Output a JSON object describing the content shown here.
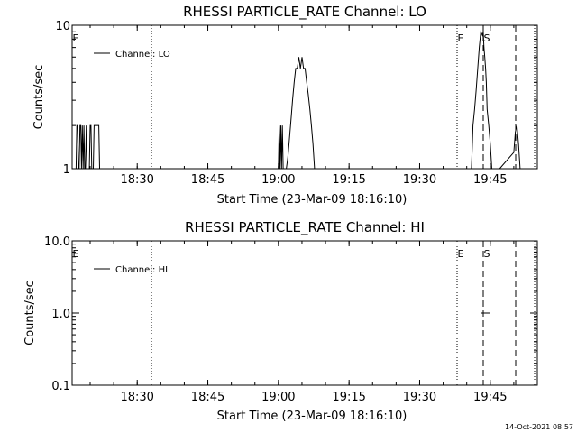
{
  "chart_data": [
    {
      "type": "line",
      "title": "RHESSI PARTICLE_RATE Channel: LO",
      "xlabel": "Start Time (23-Mar-09 18:16:10)",
      "ylabel": "Counts/sec",
      "yscale": "log",
      "ylim": [
        1,
        10
      ],
      "xlim": [
        "18:16:10",
        "19:55:00"
      ],
      "xticks": [
        "18:30",
        "18:45",
        "19:00",
        "19:15",
        "19:30",
        "19:45"
      ],
      "yticks": [
        "1",
        "10"
      ],
      "legend": "top-left",
      "series": [
        {
          "name": "Channel: LO",
          "x": [
            "18:17:00",
            "18:17:10",
            "18:17:20",
            "18:17:30",
            "18:17:40",
            "18:17:50",
            "18:18:00",
            "18:18:10",
            "18:18:20",
            "18:18:30",
            "18:18:40",
            "18:18:50",
            "18:19:00",
            "18:19:10",
            "18:19:20",
            "18:19:30",
            "18:19:40",
            "18:19:50",
            "18:20:00",
            "18:20:10",
            "18:20:20",
            "18:20:30",
            "18:20:40",
            "18:20:50",
            "18:21:00",
            "18:21:10",
            "18:21:20",
            "18:21:30",
            "18:21:40",
            "18:21:50",
            "18:22:00",
            "18:22:10",
            "18:22:20",
            "19:00:00",
            "19:00:10",
            "19:00:20",
            "19:00:30",
            "19:00:40",
            "19:00:50",
            "19:01:00",
            "19:01:10",
            "19:01:20",
            "19:01:30",
            "19:01:40",
            "19:02:00",
            "19:02:20",
            "19:02:40",
            "19:03:00",
            "19:03:20",
            "19:03:40",
            "19:04:00",
            "19:04:20",
            "19:04:40",
            "19:05:00",
            "19:05:20",
            "19:05:40",
            "19:06:00",
            "19:06:20",
            "19:06:40",
            "19:07:00",
            "19:07:20",
            "19:07:40",
            "19:08:00",
            "19:08:20",
            "19:08:40",
            "19:09:00",
            "19:09:20",
            "19:09:40",
            "19:10:00",
            "19:10:20",
            "19:10:40",
            "19:11:00",
            "19:11:20",
            "19:41:00",
            "19:41:10",
            "19:41:20",
            "19:41:40",
            "19:42:00",
            "19:42:20",
            "19:42:40",
            "19:43:00",
            "19:43:20",
            "19:43:30",
            "19:43:40",
            "19:43:50",
            "19:44:00",
            "19:44:10",
            "19:44:20",
            "19:44:40",
            "19:45:00",
            "19:45:20",
            "19:45:40",
            "19:46:00",
            "19:46:20",
            "19:46:40",
            "19:47:00",
            "19:50:00",
            "19:50:20",
            "19:50:40",
            "19:51:00",
            "19:51:20"
          ],
          "y": [
            1,
            2,
            2,
            1,
            1,
            2,
            2,
            1,
            2,
            1,
            2,
            1,
            1,
            2,
            1,
            1,
            1,
            1,
            2,
            2,
            1,
            1,
            1,
            2,
            2,
            2,
            2,
            2,
            2,
            2,
            1,
            1,
            1,
            1,
            2,
            1,
            2,
            1,
            2,
            1,
            1,
            1,
            1,
            1,
            1.2,
            1.6,
            2.2,
            3,
            4,
            5,
            5,
            6,
            5,
            6,
            5,
            5,
            4,
            3.3,
            2.6,
            2,
            1.5,
            1,
            1,
            1,
            1,
            1,
            1,
            1,
            1,
            1,
            1,
            1,
            1,
            1,
            1.4,
            2,
            2.6,
            3.5,
            5,
            7,
            9,
            8.5,
            9,
            7,
            6,
            5,
            4,
            2.6,
            2,
            1.5,
            1,
            1,
            1,
            1,
            1,
            1,
            1.3,
            1.8,
            2,
            1.5,
            1
          ]
        }
      ],
      "annotations": [
        "E",
        "E",
        "S"
      ]
    },
    {
      "type": "line",
      "title": "RHESSI PARTICLE_RATE Channel: HI",
      "xlabel": "Start Time (23-Mar-09 18:16:10)",
      "ylabel": "Counts/sec",
      "yscale": "log",
      "ylim": [
        0.1,
        10
      ],
      "xlim": [
        "18:16:10",
        "19:55:00"
      ],
      "xticks": [
        "18:30",
        "18:45",
        "19:00",
        "19:15",
        "19:30",
        "19:45"
      ],
      "yticks": [
        "0.1",
        "1.0",
        "10.0"
      ],
      "legend": "top-left",
      "series": [
        {
          "name": "Channel: HI",
          "x": [
            "19:43:00",
            "19:45:00"
          ],
          "y": [
            1.0,
            1.0
          ]
        }
      ],
      "annotations": [
        "E",
        "E",
        "S"
      ]
    }
  ],
  "timestamp": "14-Oct-2021 08:57"
}
